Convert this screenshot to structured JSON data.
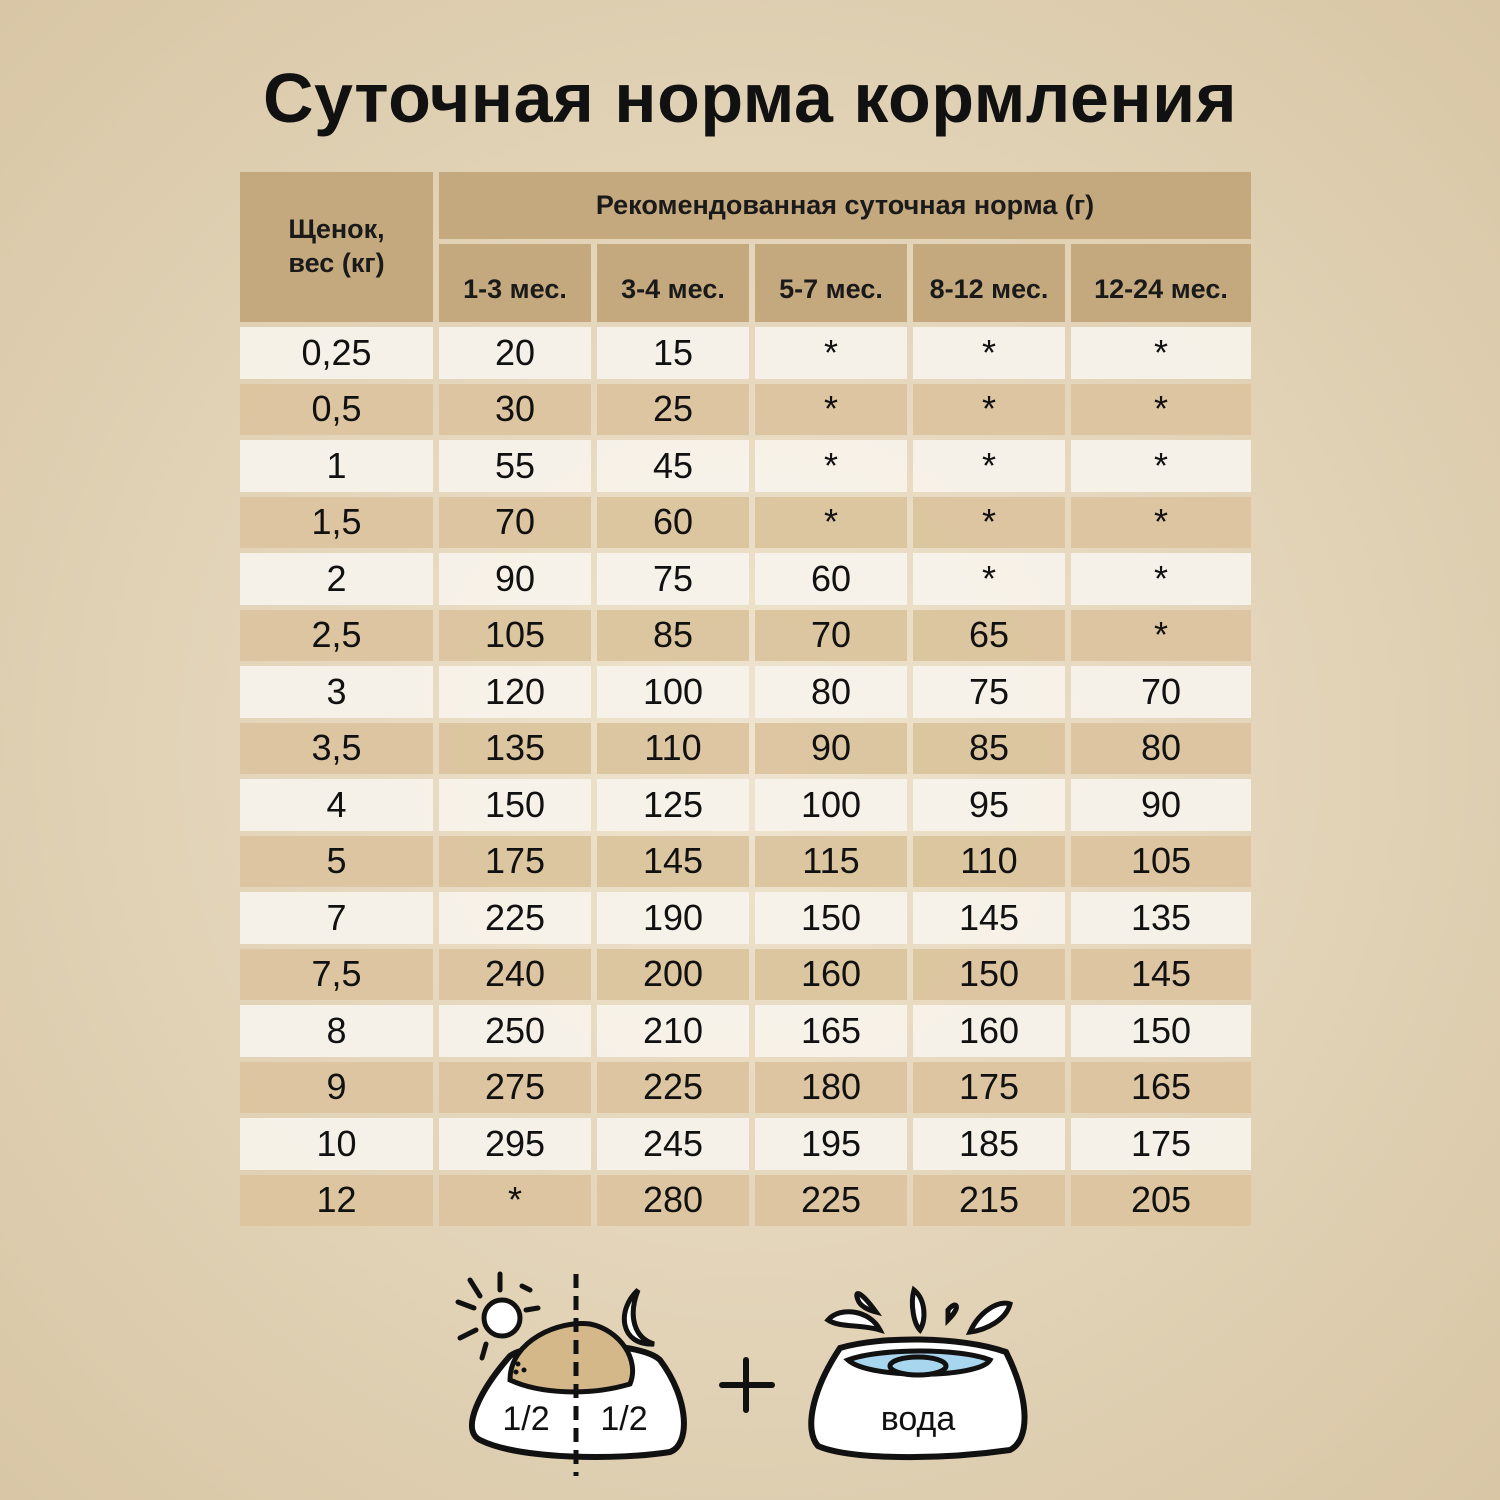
{
  "title": "Суточная норма кормления",
  "table": {
    "corner_header": "Щенок, вес (кг)",
    "group_header": "Рекомендованная суточная норма (г)",
    "columns": [
      "1-3 мес.",
      "3-4 мес.",
      "5-7 мес.",
      "8-12 мес.",
      "12-24 мес."
    ],
    "rows": [
      [
        "0,25",
        "20",
        "15",
        "*",
        "*",
        "*"
      ],
      [
        "0,5",
        "30",
        "25",
        "*",
        "*",
        "*"
      ],
      [
        "1",
        "55",
        "45",
        "*",
        "*",
        "*"
      ],
      [
        "1,5",
        "70",
        "60",
        "*",
        "*",
        "*"
      ],
      [
        "2",
        "90",
        "75",
        "60",
        "*",
        "*"
      ],
      [
        "2,5",
        "105",
        "85",
        "70",
        "65",
        "*"
      ],
      [
        "3",
        "120",
        "100",
        "80",
        "75",
        "70"
      ],
      [
        "3,5",
        "135",
        "110",
        "90",
        "85",
        "80"
      ],
      [
        "4",
        "150",
        "125",
        "100",
        "95",
        "90"
      ],
      [
        "5",
        "175",
        "145",
        "115",
        "110",
        "105"
      ],
      [
        "7",
        "225",
        "190",
        "150",
        "145",
        "135"
      ],
      [
        "7,5",
        "240",
        "200",
        "160",
        "150",
        "145"
      ],
      [
        "8",
        "250",
        "210",
        "165",
        "160",
        "150"
      ],
      [
        "9",
        "275",
        "225",
        "180",
        "175",
        "165"
      ],
      [
        "10",
        "295",
        "245",
        "195",
        "185",
        "175"
      ],
      [
        "12",
        "*",
        "280",
        "225",
        "215",
        "205"
      ]
    ]
  },
  "illustration": {
    "food_half_left": "1/2",
    "food_half_right": "1/2",
    "water_label": "вода",
    "colors": {
      "food": "#d4b88a",
      "water": "#a9d6ef",
      "header": "#c4a87e"
    }
  }
}
